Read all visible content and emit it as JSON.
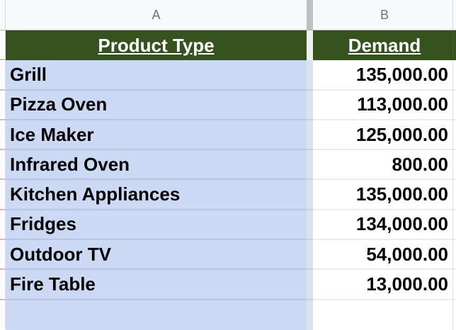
{
  "sheet": {
    "columns": [
      "A",
      "B"
    ],
    "header": {
      "product_type": "Product Type",
      "demand": "Demand"
    },
    "rows": [
      {
        "product": "Grill",
        "demand": "135,000.00"
      },
      {
        "product": "Pizza Oven",
        "demand": "113,000.00"
      },
      {
        "product": "Ice Maker",
        "demand": "125,000.00"
      },
      {
        "product": "Infrared Oven",
        "demand": "800.00"
      },
      {
        "product": "Kitchen Appliances",
        "demand": "135,000.00"
      },
      {
        "product": "Fridges",
        "demand": "134,000.00"
      },
      {
        "product": "Outdoor TV",
        "demand": "54,000.00"
      },
      {
        "product": "Fire Table",
        "demand": "13,000.00"
      }
    ],
    "colors": {
      "header_fill": "#35521f",
      "header_text": "#ffffff",
      "product_column_fill": "#ccd9f4",
      "demand_column_fill": "#ffffff",
      "column_bar_bg": "#f8f9fa",
      "column_letter_text": "#6f7376"
    }
  }
}
